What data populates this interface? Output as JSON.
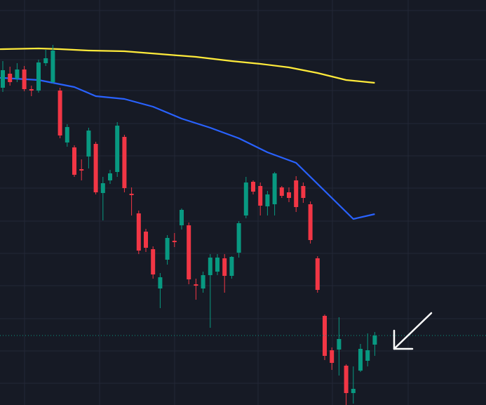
{
  "colors": {
    "background": "#161a25",
    "grid": "#232836",
    "up": "#089981",
    "down": "#f23645",
    "ma_slow": "#ffeb3b",
    "ma_fast": "#2962ff",
    "price_line": "#089981",
    "annotation_arrow": "#ffffff"
  },
  "chart_data": {
    "type": "candlestick",
    "title": "",
    "xlabel": "",
    "ylabel": "",
    "ylim": [
      0,
      577
    ],
    "xlim": [
      0,
      70
    ],
    "grid": true,
    "last_price_line": 99,
    "candles": [
      {
        "x": 0,
        "open": 452,
        "close": 477,
        "high": 490,
        "low": 446
      },
      {
        "x": 1,
        "open": 472,
        "close": 460,
        "high": 482,
        "low": 455
      },
      {
        "x": 2,
        "open": 465,
        "close": 478,
        "high": 487,
        "low": 460
      },
      {
        "x": 3,
        "open": 478,
        "close": 450,
        "high": 483,
        "low": 447
      },
      {
        "x": 4,
        "open": 450,
        "close": 448,
        "high": 455,
        "low": 440
      },
      {
        "x": 5,
        "open": 448,
        "close": 488,
        "high": 492,
        "low": 445
      },
      {
        "x": 6,
        "open": 487,
        "close": 494,
        "high": 506,
        "low": 483
      },
      {
        "x": 7,
        "open": 460,
        "close": 505,
        "high": 513,
        "low": 458
      },
      {
        "x": 8,
        "open": 448,
        "close": 384,
        "high": 452,
        "low": 380
      },
      {
        "x": 9,
        "open": 374,
        "close": 396,
        "high": 400,
        "low": 368
      },
      {
        "x": 10,
        "open": 367,
        "close": 328,
        "high": 370,
        "low": 325
      },
      {
        "x": 11,
        "open": 336,
        "close": 334,
        "high": 350,
        "low": 320
      },
      {
        "x": 12,
        "open": 354,
        "close": 391,
        "high": 395,
        "low": 337
      },
      {
        "x": 13,
        "open": 372,
        "close": 303,
        "high": 375,
        "low": 300
      },
      {
        "x": 14,
        "open": 302,
        "close": 316,
        "high": 325,
        "low": 263
      },
      {
        "x": 15,
        "open": 320,
        "close": 330,
        "high": 335,
        "low": 315
      },
      {
        "x": 16,
        "open": 332,
        "close": 398,
        "high": 403,
        "low": 325
      },
      {
        "x": 17,
        "open": 382,
        "close": 309,
        "high": 385,
        "low": 303
      },
      {
        "x": 18,
        "open": 301,
        "close": 299,
        "high": 310,
        "low": 270
      },
      {
        "x": 19,
        "open": 273,
        "close": 220,
        "high": 277,
        "low": 215
      },
      {
        "x": 20,
        "open": 247,
        "close": 224,
        "high": 251,
        "low": 218
      },
      {
        "x": 21,
        "open": 222,
        "close": 186,
        "high": 226,
        "low": 180
      },
      {
        "x": 22,
        "open": 166,
        "close": 182,
        "high": 188,
        "low": 138
      },
      {
        "x": 23,
        "open": 207,
        "close": 238,
        "high": 242,
        "low": 200
      },
      {
        "x": 24,
        "open": 234,
        "close": 232,
        "high": 245,
        "low": 225
      },
      {
        "x": 25,
        "open": 256,
        "close": 278,
        "high": 280,
        "low": 250
      },
      {
        "x": 26,
        "open": 256,
        "close": 179,
        "high": 260,
        "low": 172
      },
      {
        "x": 27,
        "open": 172,
        "close": 170,
        "high": 180,
        "low": 150
      },
      {
        "x": 28,
        "open": 166,
        "close": 185,
        "high": 190,
        "low": 160
      },
      {
        "x": 29,
        "open": 185,
        "close": 210,
        "high": 215,
        "low": 110
      },
      {
        "x": 30,
        "open": 190,
        "close": 210,
        "high": 215,
        "low": 185
      },
      {
        "x": 31,
        "open": 209,
        "close": 184,
        "high": 215,
        "low": 160
      },
      {
        "x": 32,
        "open": 184,
        "close": 211,
        "high": 212,
        "low": 180
      },
      {
        "x": 33,
        "open": 217,
        "close": 259,
        "high": 262,
        "low": 210
      },
      {
        "x": 34,
        "open": 270,
        "close": 317,
        "high": 325,
        "low": 266
      },
      {
        "x": 35,
        "open": 318,
        "close": 304,
        "high": 320,
        "low": 300
      },
      {
        "x": 36,
        "open": 312,
        "close": 284,
        "high": 317,
        "low": 270
      },
      {
        "x": 37,
        "open": 283,
        "close": 300,
        "high": 305,
        "low": 270
      },
      {
        "x": 38,
        "open": 286,
        "close": 330,
        "high": 332,
        "low": 270
      },
      {
        "x": 39,
        "open": 310,
        "close": 298,
        "high": 312,
        "low": 295
      },
      {
        "x": 40,
        "open": 303,
        "close": 295,
        "high": 310,
        "low": 289
      },
      {
        "x": 41,
        "open": 320,
        "close": 282,
        "high": 326,
        "low": 275
      },
      {
        "x": 42,
        "open": 312,
        "close": 295,
        "high": 317,
        "low": 288
      },
      {
        "x": 43,
        "open": 286,
        "close": 235,
        "high": 290,
        "low": 230
      },
      {
        "x": 44,
        "open": 209,
        "close": 164,
        "high": 212,
        "low": 160
      },
      {
        "x": 45,
        "open": 127,
        "close": 70,
        "high": 129,
        "low": 64
      },
      {
        "x": 46,
        "open": 78,
        "close": 60,
        "high": 82,
        "low": 50
      },
      {
        "x": 47,
        "open": 79,
        "close": 94,
        "high": 125,
        "low": 42
      },
      {
        "x": 48,
        "open": 56,
        "close": 17,
        "high": 58,
        "low": 0
      },
      {
        "x": 49,
        "open": 17,
        "close": 23,
        "high": 55,
        "low": 2
      },
      {
        "x": 50,
        "open": 49,
        "close": 80,
        "high": 87,
        "low": 47
      },
      {
        "x": 51,
        "open": 63,
        "close": 78,
        "high": 102,
        "low": 55
      },
      {
        "x": 52,
        "open": 86,
        "close": 99,
        "high": 104,
        "low": 70
      }
    ],
    "series": [
      {
        "type": "line",
        "color": "#ffeb3b",
        "points": [
          [
            -5,
            506
          ],
          [
            0,
            507
          ],
          [
            5,
            508
          ],
          [
            8,
            507
          ],
          [
            12,
            505
          ],
          [
            17,
            504
          ],
          [
            22,
            500
          ],
          [
            27,
            496
          ],
          [
            32,
            490
          ],
          [
            36,
            486
          ],
          [
            40,
            481
          ],
          [
            44,
            473
          ],
          [
            48,
            463
          ],
          [
            52,
            459
          ]
        ]
      },
      {
        "type": "line",
        "color": "#2962ff",
        "points": [
          [
            -5,
            467
          ],
          [
            0,
            466
          ],
          [
            5,
            463
          ],
          [
            10,
            453
          ],
          [
            13,
            440
          ],
          [
            17,
            436
          ],
          [
            21,
            425
          ],
          [
            25,
            408
          ],
          [
            29,
            395
          ],
          [
            33,
            380
          ],
          [
            37,
            360
          ],
          [
            41,
            345
          ],
          [
            43,
            325
          ],
          [
            46,
            295
          ],
          [
            49,
            265
          ],
          [
            52,
            272
          ]
        ]
      }
    ]
  }
}
